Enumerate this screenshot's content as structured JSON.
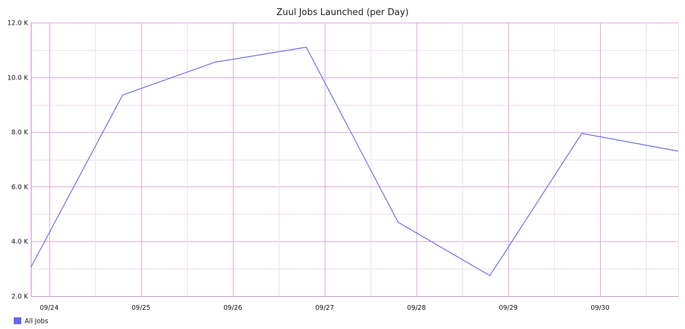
{
  "chart_data": {
    "type": "line",
    "title": "Zuul Jobs Launched (per Day)",
    "xlabel": "",
    "ylabel": "",
    "x_tick_labels": [
      "09/24",
      "09/25",
      "09/26",
      "09/27",
      "09/28",
      "09/29",
      "09/30"
    ],
    "y_tick_labels": [
      "2.0 K",
      "4.0 K",
      "6.0 K",
      "8.0 K",
      "10.0 K",
      "12.0 K"
    ],
    "ylim": [
      2000,
      12000
    ],
    "xlim": [
      "09/23 19:12",
      "09/30 20:24"
    ],
    "grid": true,
    "legend_position": "bottom-left",
    "series": [
      {
        "name": "All Jobs",
        "color": "#6666ee",
        "x": [
          "09/23 19:12",
          "09/24 19:12",
          "09/25 19:12",
          "09/26 19:12",
          "09/27 19:12",
          "09/28 19:12",
          "09/29 19:12",
          "09/30 20:24"
        ],
        "values": [
          3050,
          9350,
          10550,
          11100,
          4700,
          2750,
          7950,
          7300
        ]
      }
    ]
  },
  "colors": {
    "grid_major": "#dba8dc",
    "grid_minor": "#eeddee",
    "axis": "#c48fc8",
    "line": "#6666ee"
  }
}
